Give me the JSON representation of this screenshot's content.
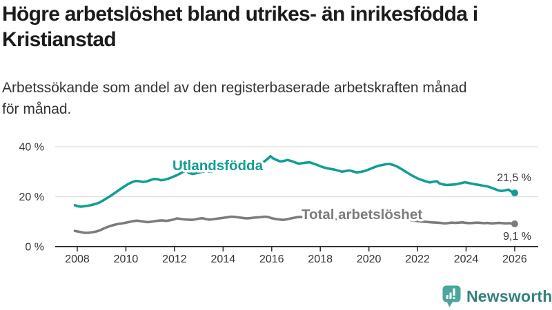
{
  "header": {
    "title_lines": {
      "0": "Högre arbetslöshet bland utrikes- än inrikesfödda i",
      "1": "Kristianstad"
    },
    "subtitle_lines": {
      "0": "Arbetssökande som andel av den registerbaserade arbetskraften månad",
      "1": "för månad."
    }
  },
  "branding": {
    "logo_text": "Newsworthy",
    "logo_icon": "bar-chart-speech-bubble-icon",
    "icon_color": "#4ba69b",
    "icon_glyph_color": "#ffffff",
    "text_color": "#33817c"
  },
  "colors": {
    "foreign_born_line": "#129e94",
    "total_line": "#7c7c7c",
    "axis": "#333333",
    "grid": "#dcdcdc",
    "value_label": "#333333",
    "background": "#ffffff"
  },
  "chart_data": {
    "type": "line",
    "title": "Högre arbetslöshet bland utrikes- än inrikesfödda i Kristianstad",
    "subtitle": "Arbetssökande som andel av den registerbaserade arbetskraften månad för månad.",
    "xlabel": "",
    "ylabel": "",
    "unit": "%",
    "grid": "horizontal",
    "legend_position": "inline-labels",
    "x_axis": {
      "ticks": [
        2008,
        2010,
        2012,
        2014,
        2016,
        2018,
        2020,
        2022,
        2024,
        2026
      ],
      "range": [
        2007.9,
        2026.9
      ]
    },
    "y_axis": {
      "ticks": [
        {
          "value": 0,
          "label": "0 %"
        },
        {
          "value": 20,
          "label": "20 %"
        },
        {
          "value": 40,
          "label": "40 %"
        }
      ],
      "range": [
        0,
        42
      ]
    },
    "series": [
      {
        "name": "Utlandsfödda",
        "color": "#129e94",
        "end_value": 21.5,
        "end_label": "21,5 %",
        "points": [
          [
            2007.9,
            16.6
          ],
          [
            2008.0,
            16.2
          ],
          [
            2008.15,
            16.0
          ],
          [
            2008.3,
            16.2
          ],
          [
            2008.45,
            16.4
          ],
          [
            2008.6,
            16.7
          ],
          [
            2008.75,
            17.1
          ],
          [
            2008.9,
            17.6
          ],
          [
            2009.05,
            18.4
          ],
          [
            2009.2,
            19.3
          ],
          [
            2009.35,
            20.2
          ],
          [
            2009.5,
            21.2
          ],
          [
            2009.65,
            22.2
          ],
          [
            2009.8,
            23.2
          ],
          [
            2009.95,
            24.2
          ],
          [
            2010.1,
            25.1
          ],
          [
            2010.25,
            25.8
          ],
          [
            2010.4,
            26.3
          ],
          [
            2010.55,
            26.2
          ],
          [
            2010.7,
            25.9
          ],
          [
            2010.85,
            26.1
          ],
          [
            2011.0,
            26.6
          ],
          [
            2011.15,
            27.1
          ],
          [
            2011.3,
            27.0
          ],
          [
            2011.45,
            26.6
          ],
          [
            2011.6,
            26.8
          ],
          [
            2011.75,
            27.2
          ],
          [
            2011.9,
            27.8
          ],
          [
            2012.05,
            28.4
          ],
          [
            2012.2,
            29.1
          ],
          [
            2012.35,
            29.9
          ],
          [
            2012.5,
            30.3
          ],
          [
            2012.6,
            29.5
          ],
          [
            2012.75,
            29.1
          ],
          [
            2012.9,
            29.4
          ],
          [
            2013.1,
            29.9
          ],
          [
            2013.3,
            30.2
          ],
          [
            2013.5,
            30.0
          ],
          [
            2013.7,
            30.4
          ],
          [
            2013.9,
            30.7
          ],
          [
            2014.1,
            30.9
          ],
          [
            2014.3,
            31.2
          ],
          [
            2014.5,
            31.0
          ],
          [
            2014.7,
            31.4
          ],
          [
            2014.9,
            31.8
          ],
          [
            2015.1,
            32.2
          ],
          [
            2015.3,
            32.7
          ],
          [
            2015.5,
            33.2
          ],
          [
            2015.7,
            34.1
          ],
          [
            2015.85,
            35.3
          ],
          [
            2015.95,
            36.2
          ],
          [
            2016.05,
            35.4
          ],
          [
            2016.2,
            34.7
          ],
          [
            2016.35,
            34.1
          ],
          [
            2016.5,
            34.3
          ],
          [
            2016.65,
            34.7
          ],
          [
            2016.8,
            34.3
          ],
          [
            2016.95,
            33.8
          ],
          [
            2017.1,
            33.2
          ],
          [
            2017.25,
            33.4
          ],
          [
            2017.4,
            33.6
          ],
          [
            2017.55,
            33.8
          ],
          [
            2017.7,
            33.3
          ],
          [
            2017.85,
            32.8
          ],
          [
            2018.0,
            32.2
          ],
          [
            2018.15,
            31.7
          ],
          [
            2018.3,
            31.3
          ],
          [
            2018.45,
            31.1
          ],
          [
            2018.6,
            30.8
          ],
          [
            2018.75,
            30.4
          ],
          [
            2018.9,
            30.0
          ],
          [
            2019.05,
            30.3
          ],
          [
            2019.2,
            30.5
          ],
          [
            2019.35,
            30.1
          ],
          [
            2019.5,
            29.7
          ],
          [
            2019.65,
            29.9
          ],
          [
            2019.8,
            30.2
          ],
          [
            2019.95,
            30.7
          ],
          [
            2020.1,
            31.3
          ],
          [
            2020.25,
            31.9
          ],
          [
            2020.4,
            32.4
          ],
          [
            2020.55,
            32.7
          ],
          [
            2020.7,
            33.0
          ],
          [
            2020.85,
            33.1
          ],
          [
            2021.0,
            32.7
          ],
          [
            2021.15,
            32.1
          ],
          [
            2021.3,
            31.3
          ],
          [
            2021.45,
            30.4
          ],
          [
            2021.6,
            29.5
          ],
          [
            2021.75,
            28.6
          ],
          [
            2021.9,
            27.8
          ],
          [
            2022.05,
            27.1
          ],
          [
            2022.2,
            26.6
          ],
          [
            2022.35,
            26.1
          ],
          [
            2022.5,
            25.7
          ],
          [
            2022.65,
            26.0
          ],
          [
            2022.8,
            26.2
          ],
          [
            2022.9,
            25.3
          ],
          [
            2023.05,
            24.9
          ],
          [
            2023.2,
            24.7
          ],
          [
            2023.4,
            24.8
          ],
          [
            2023.6,
            25.0
          ],
          [
            2023.8,
            25.4
          ],
          [
            2023.95,
            25.8
          ],
          [
            2024.1,
            25.5
          ],
          [
            2024.25,
            25.2
          ],
          [
            2024.4,
            24.9
          ],
          [
            2024.55,
            24.7
          ],
          [
            2024.7,
            24.4
          ],
          [
            2024.85,
            24.2
          ],
          [
            2025.0,
            23.7
          ],
          [
            2025.15,
            23.2
          ],
          [
            2025.3,
            22.6
          ],
          [
            2025.45,
            22.3
          ],
          [
            2025.6,
            22.5
          ],
          [
            2025.75,
            22.8
          ],
          [
            2025.85,
            22.1
          ],
          [
            2026.0,
            21.5
          ]
        ]
      },
      {
        "name": "Total arbetslöshet",
        "color": "#7c7c7c",
        "end_value": 9.1,
        "end_label": "9,1 %",
        "points": [
          [
            2007.9,
            6.3
          ],
          [
            2008.05,
            6.0
          ],
          [
            2008.2,
            5.7
          ],
          [
            2008.35,
            5.5
          ],
          [
            2008.5,
            5.6
          ],
          [
            2008.65,
            5.8
          ],
          [
            2008.8,
            6.1
          ],
          [
            2008.95,
            6.6
          ],
          [
            2009.1,
            7.3
          ],
          [
            2009.25,
            7.9
          ],
          [
            2009.4,
            8.4
          ],
          [
            2009.55,
            8.8
          ],
          [
            2009.7,
            9.1
          ],
          [
            2009.85,
            9.3
          ],
          [
            2010.0,
            9.6
          ],
          [
            2010.15,
            9.9
          ],
          [
            2010.3,
            10.2
          ],
          [
            2010.45,
            10.4
          ],
          [
            2010.6,
            10.2
          ],
          [
            2010.75,
            10.0
          ],
          [
            2010.9,
            9.8
          ],
          [
            2011.05,
            10.0
          ],
          [
            2011.2,
            10.2
          ],
          [
            2011.35,
            10.4
          ],
          [
            2011.5,
            10.5
          ],
          [
            2011.65,
            10.3
          ],
          [
            2011.8,
            10.5
          ],
          [
            2011.95,
            10.8
          ],
          [
            2012.1,
            11.3
          ],
          [
            2012.25,
            11.1
          ],
          [
            2012.4,
            10.9
          ],
          [
            2012.55,
            10.8
          ],
          [
            2012.7,
            10.7
          ],
          [
            2012.85,
            10.9
          ],
          [
            2013.0,
            11.2
          ],
          [
            2013.15,
            11.4
          ],
          [
            2013.3,
            11.0
          ],
          [
            2013.45,
            10.8
          ],
          [
            2013.6,
            11.0
          ],
          [
            2013.75,
            11.2
          ],
          [
            2013.9,
            11.4
          ],
          [
            2014.05,
            11.6
          ],
          [
            2014.2,
            11.8
          ],
          [
            2014.35,
            12.0
          ],
          [
            2014.5,
            11.9
          ],
          [
            2014.65,
            11.7
          ],
          [
            2014.8,
            11.5
          ],
          [
            2014.95,
            11.3
          ],
          [
            2015.1,
            11.4
          ],
          [
            2015.25,
            11.6
          ],
          [
            2015.4,
            11.7
          ],
          [
            2015.55,
            11.8
          ],
          [
            2015.7,
            12.0
          ],
          [
            2015.85,
            11.9
          ],
          [
            2016.0,
            11.4
          ],
          [
            2016.15,
            11.1
          ],
          [
            2016.3,
            10.9
          ],
          [
            2016.45,
            10.7
          ],
          [
            2016.6,
            10.9
          ],
          [
            2016.75,
            11.2
          ],
          [
            2016.9,
            11.5
          ],
          [
            2017.05,
            11.8
          ],
          [
            2017.2,
            11.9
          ],
          [
            2017.35,
            11.7
          ],
          [
            2017.5,
            11.6
          ],
          [
            2017.7,
            11.5
          ],
          [
            2017.9,
            11.4
          ],
          [
            2018.1,
            11.3
          ],
          [
            2018.35,
            11.2
          ],
          [
            2018.6,
            11.1
          ],
          [
            2018.85,
            11.0
          ],
          [
            2019.1,
            10.9
          ],
          [
            2019.35,
            10.9
          ],
          [
            2019.6,
            11.0
          ],
          [
            2019.85,
            11.1
          ],
          [
            2020.1,
            11.5
          ],
          [
            2020.35,
            11.9
          ],
          [
            2020.6,
            12.1
          ],
          [
            2020.85,
            11.9
          ],
          [
            2021.1,
            11.6
          ],
          [
            2021.35,
            11.2
          ],
          [
            2021.6,
            10.8
          ],
          [
            2021.85,
            10.4
          ],
          [
            2022.1,
            10.1
          ],
          [
            2022.35,
            9.9
          ],
          [
            2022.6,
            9.7
          ],
          [
            2022.8,
            9.6
          ],
          [
            2022.95,
            9.5
          ],
          [
            2023.1,
            9.3
          ],
          [
            2023.25,
            9.4
          ],
          [
            2023.4,
            9.6
          ],
          [
            2023.55,
            9.5
          ],
          [
            2023.7,
            9.6
          ],
          [
            2023.85,
            9.7
          ],
          [
            2024.0,
            9.5
          ],
          [
            2024.15,
            9.4
          ],
          [
            2024.3,
            9.5
          ],
          [
            2024.45,
            9.6
          ],
          [
            2024.6,
            9.5
          ],
          [
            2024.75,
            9.4
          ],
          [
            2024.9,
            9.5
          ],
          [
            2025.05,
            9.3
          ],
          [
            2025.2,
            9.4
          ],
          [
            2025.35,
            9.5
          ],
          [
            2025.5,
            9.4
          ],
          [
            2025.65,
            9.3
          ],
          [
            2025.8,
            9.4
          ],
          [
            2025.9,
            9.2
          ],
          [
            2026.0,
            9.1
          ]
        ]
      }
    ]
  }
}
